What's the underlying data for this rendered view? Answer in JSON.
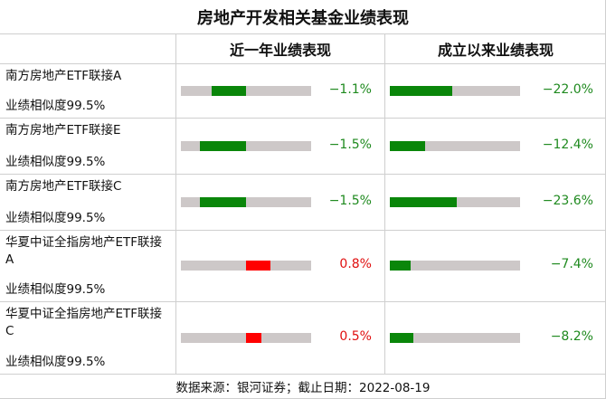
{
  "title": "房地产开发相关基金业绩表现",
  "headers": {
    "recent": "近一年业绩表现",
    "since": "成立以来业绩表现"
  },
  "footer": "数据来源：银河证券；截止日期：2022-08-19",
  "colors": {
    "positive": "#ff0000",
    "negative": "#0a860a",
    "track": "#cdc8c8"
  },
  "bar_scales": {
    "recent_max_abs_pct": 2.1,
    "since_max_abs_pct": 46
  },
  "rows": [
    {
      "fund": "南方房地产ETF联接A",
      "similarity": "业绩相似度99.5%",
      "recent": -1.1,
      "recent_label": "−1.1%",
      "since": -22.0,
      "since_label": "−22.0%"
    },
    {
      "fund": "南方房地产ETF联接E",
      "similarity": "业绩相似度99.5%",
      "recent": -1.5,
      "recent_label": "−1.5%",
      "since": -12.4,
      "since_label": "−12.4%"
    },
    {
      "fund": "南方房地产ETF联接C",
      "similarity": "业绩相似度99.5%",
      "recent": -1.5,
      "recent_label": "−1.5%",
      "since": -23.6,
      "since_label": "−23.6%"
    },
    {
      "fund": "华夏中证全指房地产ETF联接A",
      "similarity": "业绩相似度99.5%",
      "recent": 0.8,
      "recent_label": "0.8%",
      "since": -7.4,
      "since_label": "−7.4%"
    },
    {
      "fund": "华夏中证全指房地产ETF联接C",
      "similarity": "业绩相似度99.5%",
      "recent": 0.5,
      "recent_label": "0.5%",
      "since": -8.2,
      "since_label": "−8.2%"
    }
  ]
}
